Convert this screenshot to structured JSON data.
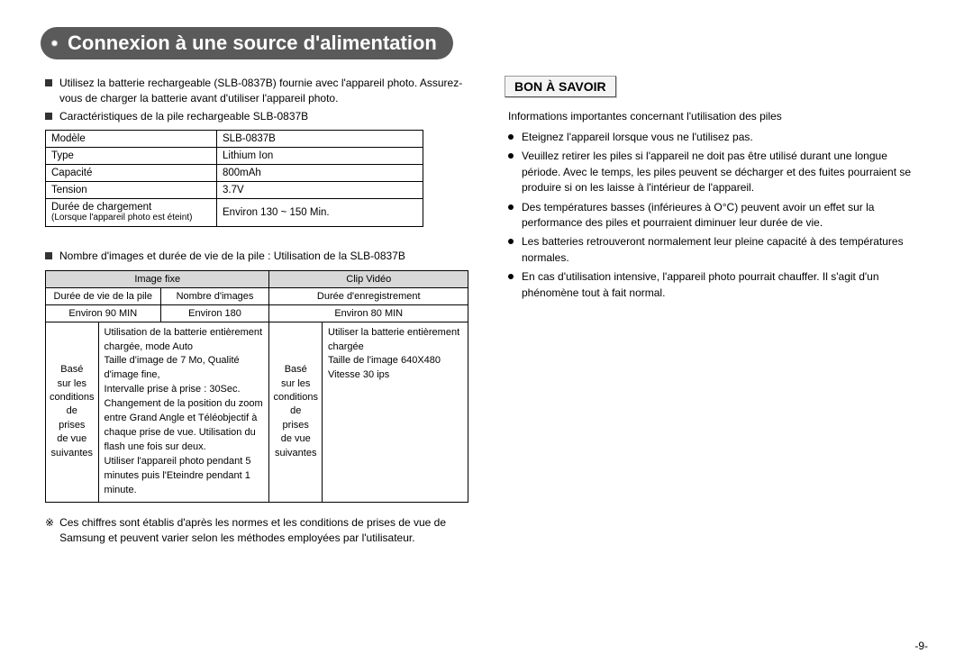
{
  "page": {
    "title": "Connexion à une source d'alimentation",
    "pageNumber": "-9-"
  },
  "left": {
    "intro": "Utilisez la batterie rechargeable (SLB-0837B) fournie avec l'appareil photo. Assurez-vous de charger la batterie avant d'utiliser l'appareil photo.",
    "specHeader": "Caractéristiques de la pile rechargeable SLB-0837B",
    "specTable": {
      "rows": [
        [
          "Modèle",
          "SLB-0837B"
        ],
        [
          "Type",
          "Lithium Ion"
        ],
        [
          "Capacité",
          "800mAh"
        ],
        [
          "Tension",
          "3.7V"
        ]
      ],
      "chargeRow": {
        "label": "Durée de chargement",
        "sublabel": "(Lorsque l'appareil photo est éteint)",
        "value": "Environ 130 ~ 150 Min."
      }
    },
    "usageHeader": "Nombre d'images et durée de vie de la pile : Utilisation de la SLB-0837B",
    "usageTable": {
      "topHeaders": [
        "Image fixe",
        "Clip Vidéo"
      ],
      "subHeaders": [
        "Durée de vie de la pile",
        "Nombre d'images",
        "Durée d'enregistrement"
      ],
      "values": [
        "Environ 90 MIN",
        "Environ 180",
        "Environ 80 MIN"
      ],
      "condLabel1": "Basé sur les conditions de prises de vue suivantes",
      "condDesc1": "Utilisation de la batterie entièrement chargée, mode Auto\nTaille d'image de 7 Mo, Qualité d'image fine,\nIntervalle prise à prise : 30Sec.\nChangement de la position du zoom entre Grand Angle et Téléobjectif à chaque prise de vue. Utilisation du flash une fois sur deux.\nUtiliser l'appareil photo pendant 5 minutes puis l'Eteindre pendant 1 minute.",
      "condLabel2": "Basé sur les conditions de prises de vue suivantes",
      "condDesc2": "Utiliser la batterie entièrement chargée\nTaille de l'image 640X480\nVitesse 30 ips"
    },
    "footnote": "Ces chiffres sont établis d'après les normes et les conditions de prises de vue de Samsung et peuvent varier selon les méthodes employées par l'utilisateur."
  },
  "right": {
    "boxTitle": "BON À SAVOIR",
    "intro": "Informations importantes concernant l'utilisation des piles",
    "items": [
      "Eteignez l'appareil lorsque vous ne l'utilisez pas.",
      "Veuillez retirer les piles si l'appareil ne doit pas être utilisé durant une longue période. Avec le temps, les piles peuvent se décharger et des fuites pourraient se produire si on les laisse à l'intérieur de l'appareil.",
      "Des températures basses (inférieures à O°C) peuvent avoir un effet sur la performance des piles et pourraient diminuer leur durée de vie.",
      "Les batteries retrouveront normalement leur pleine capacité à des températures normales.",
      "En cas d'utilisation intensive, l'appareil photo pourrait chauffer. Il s'agit d'un phénomène tout à fait normal."
    ]
  }
}
